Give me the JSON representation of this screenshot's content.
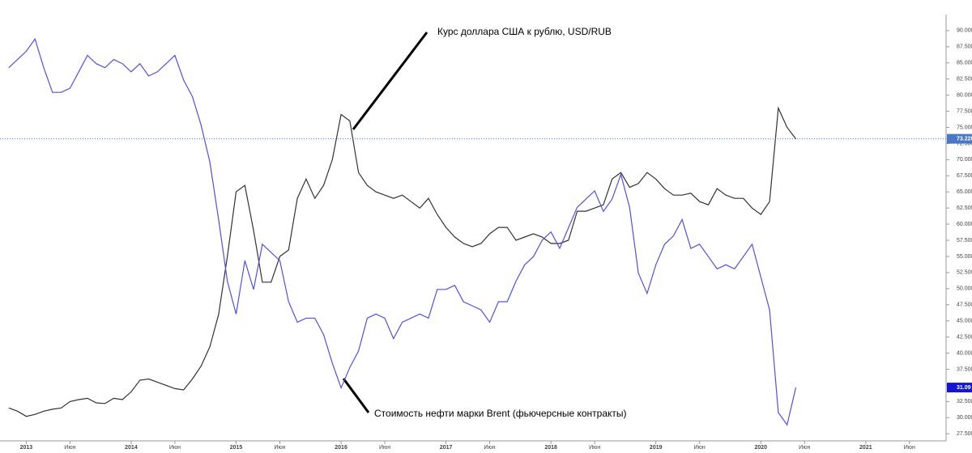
{
  "chart_data": {
    "type": "line",
    "annotations": [
      "Курс доллара США к рублю, USD/RUB",
      "Стоимость нефти марки Brent (фьючерсные контракты)"
    ],
    "x": [
      "2012-11",
      "2012-12",
      "2013-01",
      "2013-02",
      "2013-03",
      "2013-04",
      "2013-05",
      "2013-06",
      "2013-07",
      "2013-08",
      "2013-09",
      "2013-10",
      "2013-11",
      "2013-12",
      "2014-01",
      "2014-02",
      "2014-03",
      "2014-04",
      "2014-05",
      "2014-06",
      "2014-07",
      "2014-08",
      "2014-09",
      "2014-10",
      "2014-11",
      "2014-12",
      "2015-01",
      "2015-02",
      "2015-03",
      "2015-04",
      "2015-05",
      "2015-06",
      "2015-07",
      "2015-08",
      "2015-09",
      "2015-10",
      "2015-11",
      "2015-12",
      "2016-01",
      "2016-02",
      "2016-03",
      "2016-04",
      "2016-05",
      "2016-06",
      "2016-07",
      "2016-08",
      "2016-09",
      "2016-10",
      "2016-11",
      "2016-12",
      "2017-01",
      "2017-02",
      "2017-03",
      "2017-04",
      "2017-05",
      "2017-06",
      "2017-07",
      "2017-08",
      "2017-09",
      "2017-10",
      "2017-11",
      "2017-12",
      "2018-01",
      "2018-02",
      "2018-03",
      "2018-04",
      "2018-05",
      "2018-06",
      "2018-07",
      "2018-08",
      "2018-09",
      "2018-10",
      "2018-11",
      "2018-12",
      "2019-01",
      "2019-02",
      "2019-03",
      "2019-04",
      "2019-05",
      "2019-06",
      "2019-07",
      "2019-08",
      "2019-09",
      "2019-10",
      "2019-11",
      "2019-12",
      "2020-01",
      "2020-02",
      "2020-03",
      "2020-04",
      "2020-05"
    ],
    "series": [
      {
        "name": "USD/RUB",
        "color": "#333333",
        "values": [
          31.5,
          31,
          30.2,
          30.5,
          31,
          31.3,
          31.5,
          32.5,
          32.8,
          33,
          32.3,
          32.2,
          33,
          32.8,
          34,
          35.8,
          36,
          35.5,
          35,
          34.5,
          34.3,
          36,
          38,
          41,
          46,
          55,
          65,
          66,
          59,
          51,
          51,
          55,
          56,
          64,
          67,
          64,
          66,
          70,
          77,
          76,
          68,
          66,
          65,
          64.5,
          64,
          64.5,
          63.5,
          62.5,
          64,
          61.5,
          59.5,
          58,
          57,
          56.5,
          57,
          58.5,
          59.5,
          59.5,
          57.5,
          58,
          58.5,
          58,
          57,
          57,
          57.5,
          62,
          62,
          62.5,
          63,
          67,
          68,
          65.7,
          66.3,
          68,
          67,
          65.5,
          64.5,
          64.5,
          64.8,
          63.5,
          63,
          65.5,
          64.5,
          64,
          64,
          62.5,
          61.5,
          63.5,
          78,
          75,
          73.228
        ],
        "value_labels": [
          null,
          null,
          null,
          null,
          null,
          null,
          null,
          null,
          null,
          null,
          null,
          null,
          null,
          null,
          null,
          null,
          null,
          null,
          null,
          null,
          null,
          null,
          null,
          null,
          null,
          null,
          null,
          null,
          null,
          null,
          null,
          null,
          null,
          null,
          null,
          null,
          null,
          null,
          null,
          null,
          null,
          null,
          null,
          null,
          null,
          null,
          null,
          null,
          null,
          null,
          null,
          null,
          null,
          null,
          null,
          null,
          null,
          null,
          null,
          null,
          null,
          null,
          null,
          null,
          null,
          null,
          null,
          null,
          null,
          null,
          null,
          null,
          null,
          null,
          null,
          null,
          null,
          null,
          null,
          null,
          null,
          null,
          null,
          null,
          null,
          null,
          null,
          null,
          null,
          null,
          "73.2280"
        ]
      },
      {
        "name": "Brent",
        "color": "#5050e8",
        "axis": "y2",
        "values": [
          109,
          111,
          113,
          116,
          109,
          103,
          103,
          104,
          108,
          112,
          110,
          109,
          111,
          110,
          108,
          110,
          107,
          108,
          110,
          112,
          106,
          102,
          95,
          86,
          72,
          57,
          49,
          62,
          55,
          66,
          64,
          62,
          52,
          47,
          48,
          48,
          44,
          37,
          31,
          36,
          40,
          48,
          49,
          48,
          43,
          47,
          48,
          49,
          48,
          55,
          55,
          56,
          52,
          51,
          50,
          47,
          52,
          52,
          57,
          61,
          63,
          67,
          69,
          65,
          70,
          75,
          77,
          79,
          74,
          77,
          83,
          75,
          59,
          54,
          61,
          66,
          68,
          72,
          65,
          66,
          63,
          60,
          61,
          60,
          63,
          66,
          58,
          50,
          25,
          22,
          31.09
        ]
      }
    ],
    "xlim": [
      "2012-10",
      "2021-10"
    ],
    "xticks": [
      {
        "value": "2013-01",
        "label": "2013"
      },
      {
        "value": "2013-06",
        "label": "Июн"
      },
      {
        "value": "2014-01",
        "label": "2014"
      },
      {
        "value": "2014-06",
        "label": "Июн"
      },
      {
        "value": "2015-01",
        "label": "2015"
      },
      {
        "value": "2015-06",
        "label": "Июн"
      },
      {
        "value": "2016-01",
        "label": "2016"
      },
      {
        "value": "2016-06",
        "label": "Июн"
      },
      {
        "value": "2017-01",
        "label": "2017"
      },
      {
        "value": "2017-06",
        "label": "Июн"
      },
      {
        "value": "2018-01",
        "label": "2018"
      },
      {
        "value": "2018-06",
        "label": "Июн"
      },
      {
        "value": "2019-01",
        "label": "2019"
      },
      {
        "value": "2019-06",
        "label": "Июн"
      },
      {
        "value": "2020-01",
        "label": "2020"
      },
      {
        "value": "2020-06",
        "label": "Июн"
      },
      {
        "value": "2021-01",
        "label": "2021"
      },
      {
        "value": "2021-06",
        "label": "Июн"
      }
    ],
    "ylim": [
      26.4,
      94.75
    ],
    "yticks": [
      {
        "value": 27.5,
        "label": "27.5000"
      },
      {
        "value": 30,
        "label": "30.0000"
      },
      {
        "value": 32.5,
        "label": "32.5000"
      },
      {
        "value": 35,
        "label": "35.0000"
      },
      {
        "value": 37.5,
        "label": "37.5000"
      },
      {
        "value": 40,
        "label": "40.0000"
      },
      {
        "value": 42.5,
        "label": "42.5000"
      },
      {
        "value": 45,
        "label": "45.0000"
      },
      {
        "value": 47.5,
        "label": "47.5000"
      },
      {
        "value": 50,
        "label": "50.0000"
      },
      {
        "value": 52.5,
        "label": "52.5000"
      },
      {
        "value": 55,
        "label": "55.0000"
      },
      {
        "value": 57.5,
        "label": "57.5000"
      },
      {
        "value": 60,
        "label": "60.0000"
      },
      {
        "value": 62.5,
        "label": "62.5000"
      },
      {
        "value": 65,
        "label": "65.0000"
      },
      {
        "value": 67.5,
        "label": "67.5000"
      },
      {
        "value": 70,
        "label": "70.0000"
      },
      {
        "value": 72.5,
        "label": "72.5000"
      },
      {
        "value": 75,
        "label": "75.0000"
      },
      {
        "value": 77.5,
        "label": "77.5000"
      },
      {
        "value": 80,
        "label": "80.0000"
      },
      {
        "value": 82.5,
        "label": "82.5000"
      },
      {
        "value": 85,
        "label": "85.0000"
      },
      {
        "value": 87.5,
        "label": "87.5000"
      },
      {
        "value": 90,
        "label": "90.0000"
      }
    ],
    "y2lim": [
      18.1,
      125.5
    ]
  }
}
